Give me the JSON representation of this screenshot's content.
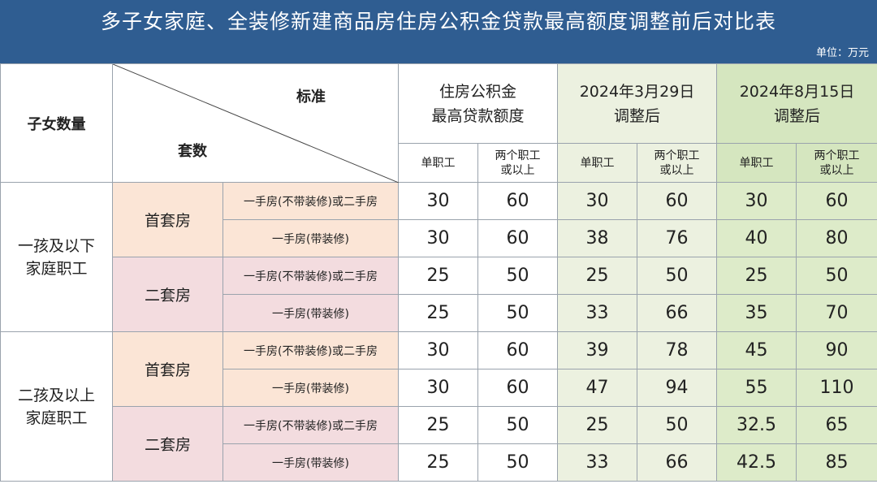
{
  "title": "多子女家庭、全装修新建商品房住房公积金贷款最高额度调整前后对比表",
  "unit": "单位：万元",
  "header": {
    "count_label": "子女数量",
    "standard_label": "标准",
    "sets_label": "套数",
    "col_groups": [
      {
        "line1": "住房公积金",
        "line2": "最高贷款额度"
      },
      {
        "line1": "2024年3月29日",
        "line2": "调整后"
      },
      {
        "line1": "2024年8月15日",
        "line2": "调整后"
      }
    ],
    "sub_single": "单职工",
    "sub_two_line1": "两个职工",
    "sub_two_line2": "或以上"
  },
  "groups": [
    {
      "label_line1": "一孩及以下",
      "label_line2": "家庭职工",
      "categories": [
        {
          "label": "首套房",
          "rows": [
            {
              "type": "一手房(不带装修)或二手房",
              "values": [
                "30",
                "60",
                "30",
                "60",
                "30",
                "60"
              ]
            },
            {
              "type": "一手房(带装修)",
              "values": [
                "30",
                "60",
                "38",
                "76",
                "40",
                "80"
              ]
            }
          ]
        },
        {
          "label": "二套房",
          "rows": [
            {
              "type": "一手房(不带装修)或二手房",
              "values": [
                "25",
                "50",
                "25",
                "50",
                "25",
                "50"
              ]
            },
            {
              "type": "一手房(带装修)",
              "values": [
                "25",
                "50",
                "33",
                "66",
                "35",
                "70"
              ]
            }
          ]
        }
      ]
    },
    {
      "label_line1": "二孩及以上",
      "label_line2": "家庭职工",
      "categories": [
        {
          "label": "首套房",
          "rows": [
            {
              "type": "一手房(不带装修)或二手房",
              "values": [
                "30",
                "60",
                "39",
                "78",
                "45",
                "90"
              ]
            },
            {
              "type": "一手房(带装修)",
              "values": [
                "30",
                "60",
                "47",
                "94",
                "55",
                "110"
              ]
            }
          ]
        },
        {
          "label": "二套房",
          "rows": [
            {
              "type": "一手房(不带装修)或二手房",
              "values": [
                "25",
                "50",
                "25",
                "50",
                "32.5",
                "65"
              ]
            },
            {
              "type": "一手房(带装修)",
              "values": [
                "25",
                "50",
                "33",
                "66",
                "42.5",
                "85"
              ]
            }
          ]
        }
      ]
    }
  ]
}
